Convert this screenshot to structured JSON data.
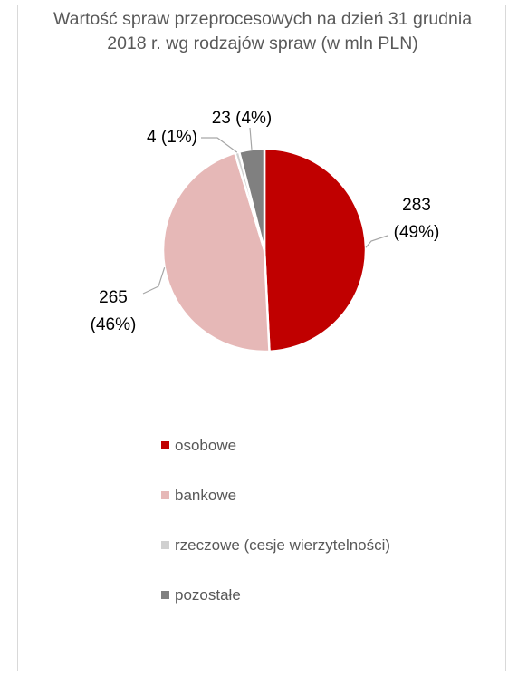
{
  "chart_data": {
    "type": "pie",
    "title": "Wartość spraw przeprocesowych na dzień 31 grudnia 2018 r. wg rodzajów spraw (w mln PLN)",
    "categories": [
      "osobowe",
      "bankowe",
      "rzeczowe (cesje wierzytelności)",
      "pozostałe"
    ],
    "values": [
      283,
      265,
      4,
      23
    ],
    "percentages": [
      "49%",
      "46%",
      "1%",
      "4%"
    ],
    "data_labels": [
      {
        "value": "283",
        "percent": "(49%)"
      },
      {
        "value": "265",
        "percent": "(46%)"
      },
      {
        "value": "4",
        "percent": "(1%)"
      },
      {
        "value": "23",
        "percent": "(4%)"
      }
    ],
    "colors": [
      "#c00000",
      "#e6b8b7",
      "#d0d0d0",
      "#808080"
    ],
    "legend_position": "bottom"
  }
}
